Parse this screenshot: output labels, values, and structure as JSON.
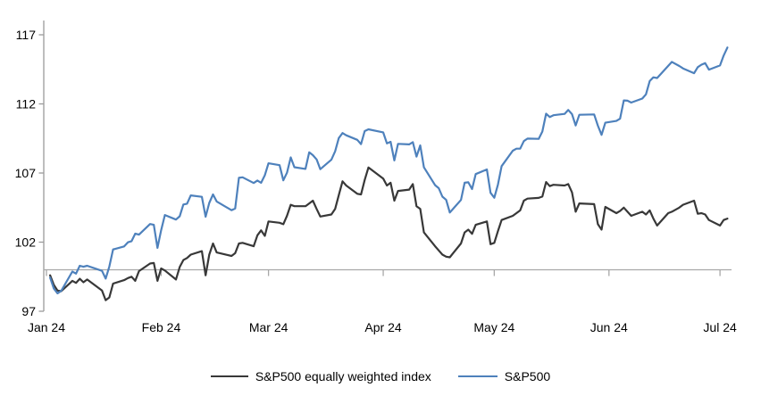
{
  "chart": {
    "y_axis_tick_labels": [
      "97",
      "102",
      "107",
      "112",
      "117"
    ],
    "x_axis_tick_labels": [
      "Jan 24",
      "Feb 24",
      "Mar 24",
      "Apr 24",
      "May 24",
      "Jun 24",
      "Jul 24"
    ],
    "axis_color": "#9b9b9b",
    "baseline_color": "#a8a8a8"
  },
  "legend": {
    "equal_weight_label": "S&P500 equally weighted index",
    "sp500_label": "S&P500"
  },
  "chart_data": {
    "type": "line",
    "title": "",
    "xlabel": "",
    "ylabel": "",
    "x_unit": "day_of_year_2024",
    "xlim_days": [
      1,
      186
    ],
    "ylim": [
      97,
      117
    ],
    "y_ticks": [
      97,
      102,
      107,
      112,
      117
    ],
    "baseline_value": 100,
    "grid": false,
    "legend_position": "bottom",
    "x_tick_labels": [
      "Jan 24",
      "Feb 24",
      "Mar 24",
      "Apr 24",
      "May 24",
      "Jun 24",
      "Jul 24"
    ],
    "x_tick_days": [
      1,
      32,
      61,
      92,
      122,
      153,
      183
    ],
    "x": [
      2,
      3,
      4,
      5,
      8,
      9,
      10,
      11,
      12,
      16,
      17,
      18,
      19,
      22,
      23,
      24,
      25,
      26,
      29,
      30,
      31,
      32,
      33,
      36,
      37,
      38,
      39,
      40,
      43,
      44,
      45,
      46,
      47,
      51,
      52,
      53,
      54,
      57,
      58,
      59,
      60,
      61,
      64,
      65,
      66,
      67,
      68,
      71,
      72,
      73,
      74,
      75,
      78,
      79,
      80,
      81,
      82,
      85,
      86,
      87,
      88,
      92,
      93,
      94,
      95,
      96,
      99,
      100,
      101,
      102,
      103,
      106,
      107,
      108,
      109,
      110,
      113,
      114,
      115,
      116,
      117,
      120,
      121,
      122,
      123,
      124,
      127,
      128,
      129,
      130,
      131,
      134,
      135,
      136,
      137,
      138,
      141,
      142,
      143,
      144,
      145,
      149,
      150,
      151,
      152,
      155,
      156,
      157,
      158,
      159,
      162,
      163,
      164,
      165,
      166,
      169,
      170,
      172,
      173,
      176,
      177,
      178,
      179,
      180,
      183,
      184,
      185
    ],
    "series": [
      {
        "name": "S&P500 equally weighted index",
        "color": "#383838",
        "values": [
          99.6,
          98.9,
          98.5,
          98.45,
          99.2,
          99.05,
          99.35,
          99.1,
          99.3,
          98.5,
          97.8,
          98.0,
          99.0,
          99.25,
          99.4,
          99.5,
          99.2,
          99.9,
          100.45,
          100.5,
          99.2,
          100.1,
          99.95,
          99.3,
          100.2,
          100.7,
          100.85,
          101.1,
          101.35,
          99.6,
          101.1,
          101.9,
          101.25,
          101.0,
          101.2,
          101.9,
          101.95,
          101.7,
          102.5,
          102.85,
          102.45,
          103.5,
          103.4,
          103.3,
          103.9,
          104.7,
          104.6,
          104.6,
          104.8,
          105.0,
          104.4,
          103.85,
          104.0,
          104.4,
          105.4,
          106.4,
          106.1,
          105.5,
          105.45,
          106.5,
          107.4,
          106.6,
          106.1,
          106.3,
          105.0,
          105.7,
          105.8,
          106.2,
          104.6,
          104.4,
          102.7,
          101.7,
          101.4,
          101.1,
          100.95,
          100.9,
          101.9,
          102.7,
          102.9,
          102.6,
          103.25,
          103.5,
          101.85,
          101.95,
          102.8,
          103.6,
          103.9,
          104.1,
          104.3,
          105.0,
          105.15,
          105.2,
          105.3,
          106.35,
          106.05,
          106.15,
          106.1,
          106.2,
          105.6,
          104.2,
          104.8,
          104.75,
          103.3,
          102.9,
          104.55,
          104.1,
          104.25,
          104.5,
          104.2,
          103.9,
          104.2,
          104.0,
          104.3,
          103.7,
          103.2,
          104.1,
          104.2,
          104.5,
          104.7,
          105.0,
          104.05,
          104.1,
          104.0,
          103.6,
          103.2,
          103.6,
          103.7
        ]
      },
      {
        "name": "S&P500",
        "color": "#4e81bc",
        "values": [
          99.43,
          98.64,
          98.3,
          98.48,
          99.87,
          99.72,
          100.29,
          100.22,
          100.29,
          99.92,
          99.36,
          100.23,
          101.47,
          101.69,
          101.99,
          102.07,
          102.61,
          102.54,
          103.31,
          103.25,
          101.59,
          102.86,
          103.96,
          103.63,
          103.87,
          104.72,
          104.78,
          105.38,
          105.28,
          103.84,
          104.84,
          105.45,
          104.94,
          104.31,
          104.44,
          106.65,
          106.69,
          106.28,
          106.46,
          106.29,
          106.84,
          107.7,
          107.57,
          106.47,
          107.02,
          108.13,
          107.42,
          107.3,
          108.5,
          108.29,
          107.98,
          107.28,
          107.96,
          108.57,
          109.53,
          109.89,
          109.73,
          109.4,
          109.09,
          110.03,
          110.16,
          109.94,
          109.14,
          109.26,
          107.91,
          109.11,
          109.07,
          109.23,
          108.19,
          109.0,
          107.41,
          106.12,
          105.9,
          105.29,
          105.06,
          104.14,
          105.05,
          106.3,
          106.33,
          105.84,
          106.92,
          107.26,
          105.57,
          105.21,
          106.17,
          107.5,
          108.61,
          108.76,
          108.76,
          109.31,
          109.49,
          109.47,
          110.0,
          111.29,
          111.05,
          111.18,
          111.28,
          111.56,
          111.26,
          110.44,
          111.21,
          111.24,
          110.42,
          109.76,
          110.64,
          110.77,
          110.93,
          112.25,
          112.23,
          112.1,
          112.39,
          112.69,
          113.65,
          113.92,
          113.87,
          114.75,
          115.04,
          114.74,
          114.57,
          114.22,
          114.66,
          114.84,
          114.95,
          114.48,
          114.78,
          115.5,
          116.08
        ]
      }
    ]
  }
}
